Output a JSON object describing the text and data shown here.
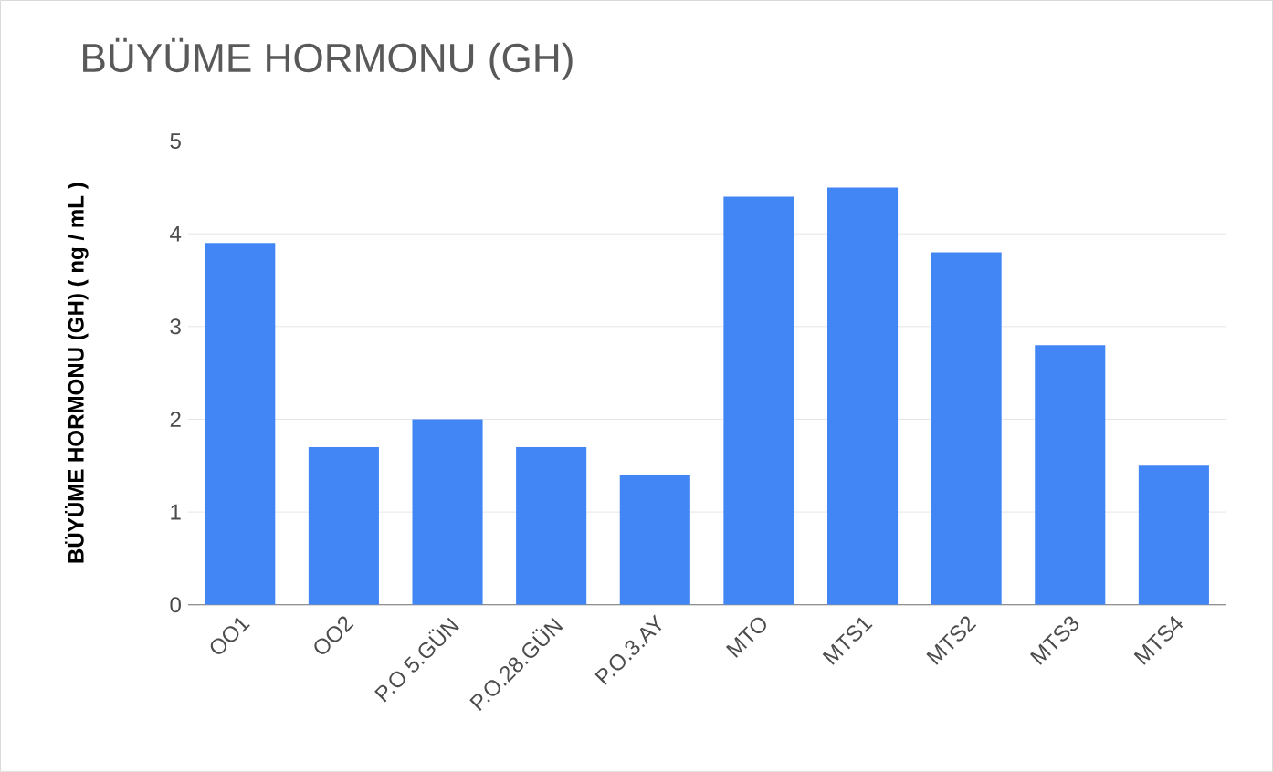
{
  "chart_data": {
    "type": "bar",
    "title": "BÜYÜME HORMONU (GH)",
    "ylabel": "BÜYÜME HORMONU (GH) ( ng / mL )",
    "categories": [
      "OO1",
      "OO2",
      "P.O 5.GÜN",
      "P.O.28.GÜN",
      "P.O.3.AY",
      "MTO",
      "MTS1",
      "MTS2",
      "MTS3",
      "MTS4"
    ],
    "values": [
      3.9,
      1.7,
      2.0,
      1.7,
      1.4,
      4.4,
      4.5,
      3.8,
      2.8,
      1.5
    ],
    "color": "#4285f4",
    "ylim": [
      0,
      5
    ],
    "yticks": [
      0,
      1,
      2,
      3,
      4,
      5
    ],
    "grid": "y"
  }
}
